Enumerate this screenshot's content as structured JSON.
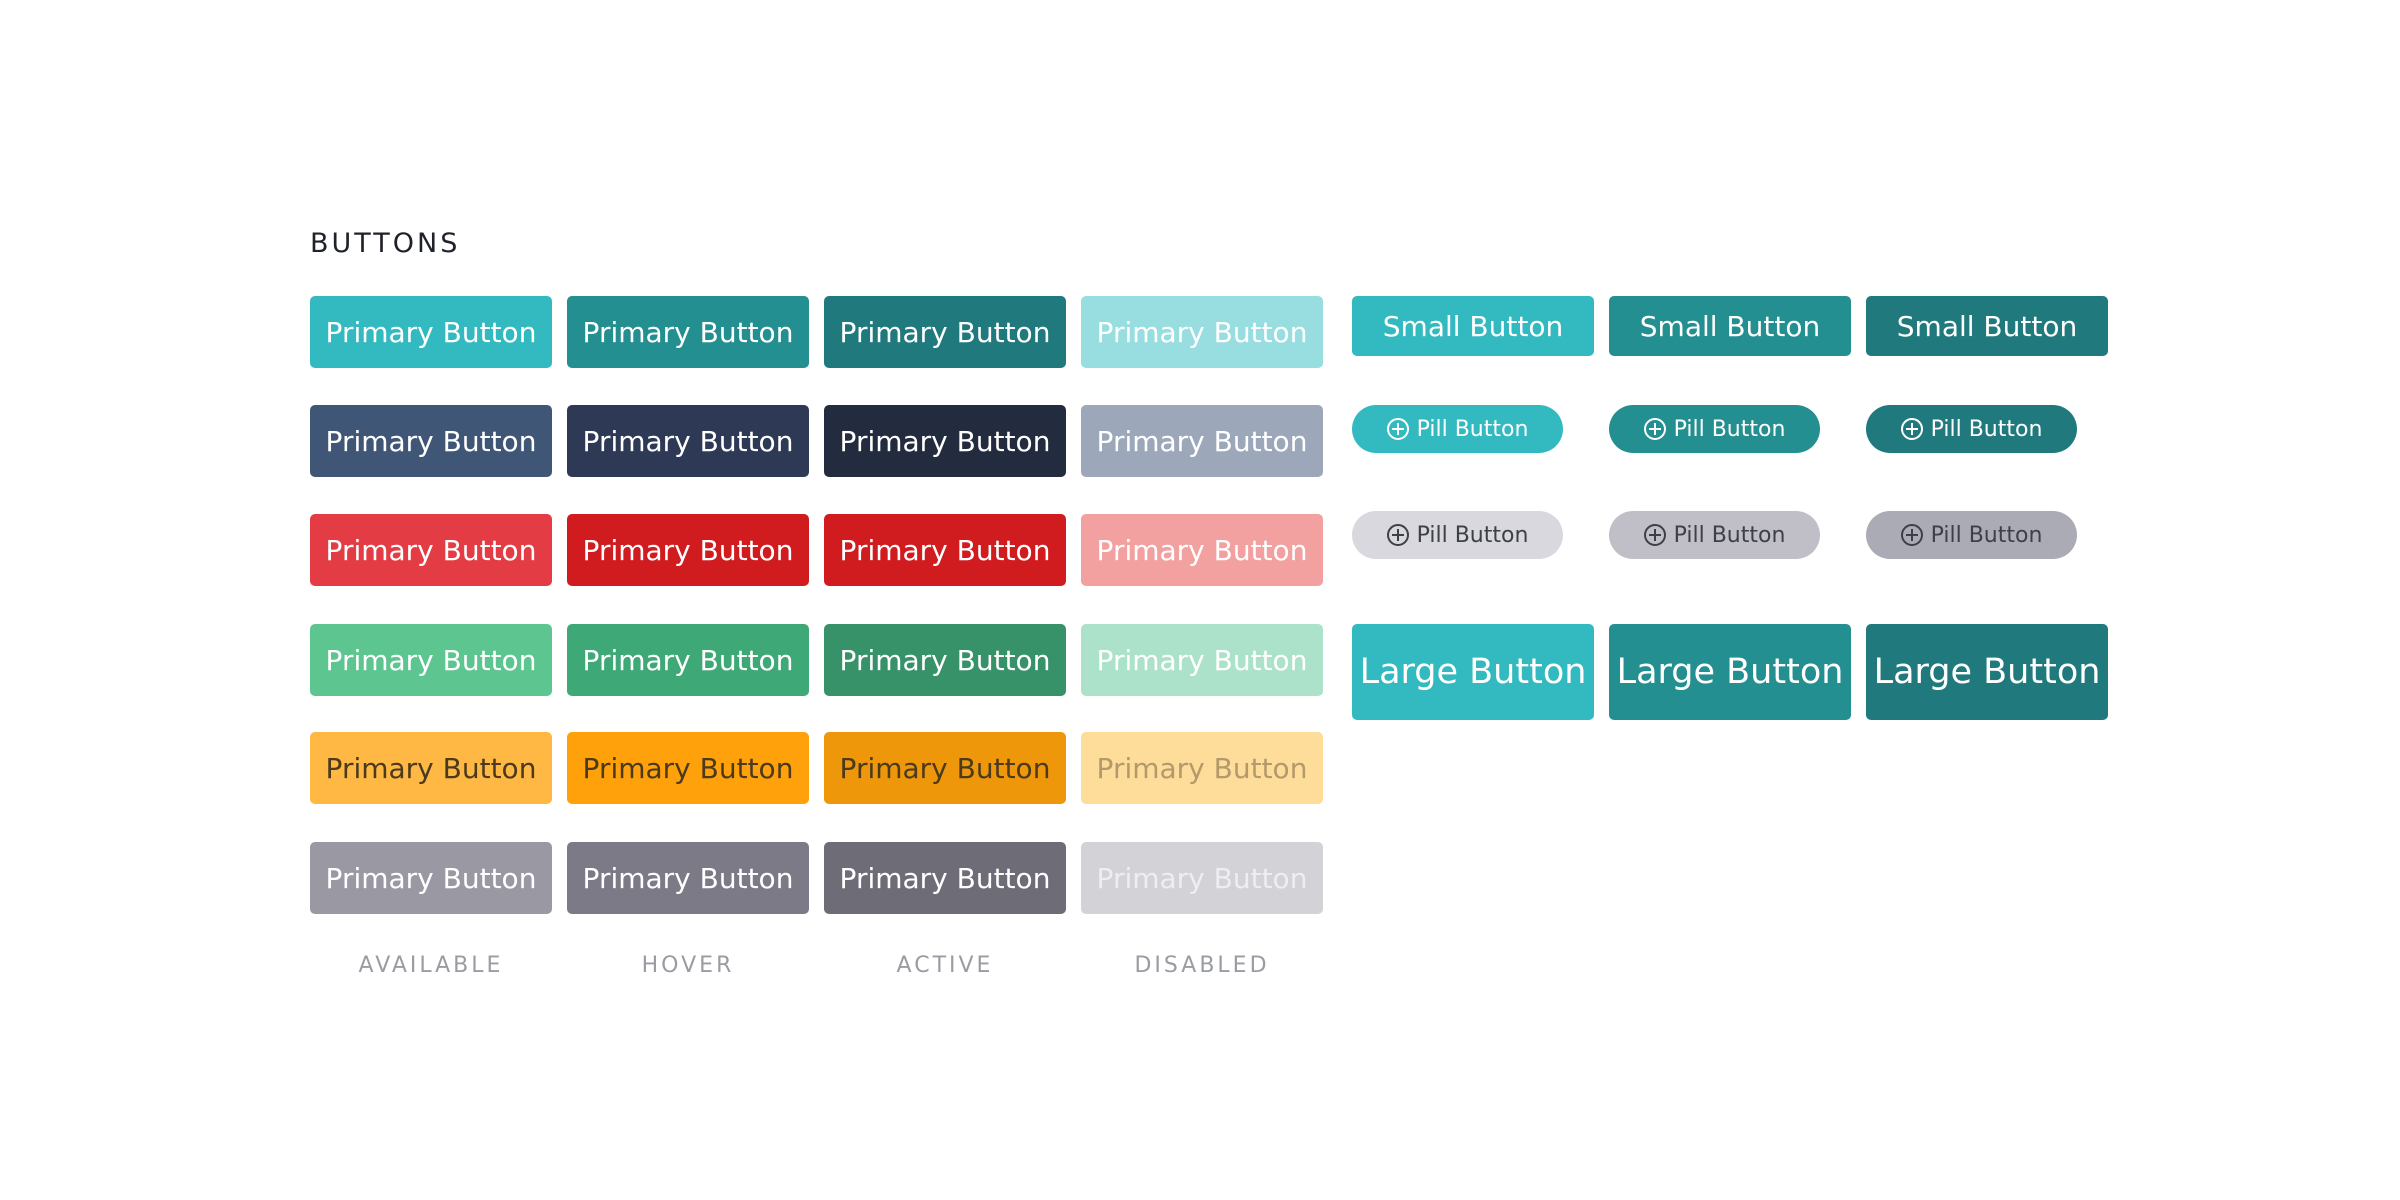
{
  "title": "BUTTONS",
  "primary_grid": {
    "label": "Primary Button",
    "rows": [
      {
        "name": "teal",
        "states": [
          {
            "bg": "#33b9c0",
            "fg": "#ffffff"
          },
          {
            "bg": "#238f90",
            "fg": "#ffffff"
          },
          {
            "bg": "#207a7d",
            "fg": "#ffffff"
          },
          {
            "bg": "#98dee0",
            "fg": "#ffffff"
          }
        ]
      },
      {
        "name": "navy",
        "states": [
          {
            "bg": "#3f5677",
            "fg": "#ffffff"
          },
          {
            "bg": "#2e3a55",
            "fg": "#ffffff"
          },
          {
            "bg": "#232c3f",
            "fg": "#ffffff"
          },
          {
            "bg": "#9ca8ba",
            "fg": "#ffffff"
          }
        ]
      },
      {
        "name": "red",
        "states": [
          {
            "bg": "#e43c44",
            "fg": "#ffffff"
          },
          {
            "bg": "#d01b1f",
            "fg": "#ffffff"
          },
          {
            "bg": "#d01b1f",
            "fg": "#ffffff"
          },
          {
            "bg": "#f2a0a0",
            "fg": "#ffffff"
          }
        ]
      },
      {
        "name": "green",
        "states": [
          {
            "bg": "#5dc590",
            "fg": "#ffffff"
          },
          {
            "bg": "#3fa877",
            "fg": "#ffffff"
          },
          {
            "bg": "#37926a",
            "fg": "#ffffff"
          },
          {
            "bg": "#ade2ca",
            "fg": "#ffffff"
          }
        ]
      },
      {
        "name": "yellow",
        "states": [
          {
            "bg": "#feb843",
            "fg": "#4b3a1c"
          },
          {
            "bg": "#fea10a",
            "fg": "#4b3a1c"
          },
          {
            "bg": "#ee970a",
            "fg": "#4b3a1c"
          },
          {
            "bg": "#fedc9a",
            "fg": "#b39a6a"
          }
        ]
      },
      {
        "name": "gray",
        "states": [
          {
            "bg": "#9a99a3",
            "fg": "#ffffff"
          },
          {
            "bg": "#7b7a86",
            "fg": "#ffffff"
          },
          {
            "bg": "#6e6d77",
            "fg": "#ffffff"
          },
          {
            "bg": "#d2d2d7",
            "fg": "#eeeef1"
          }
        ]
      }
    ]
  },
  "state_labels": [
    "AVAILABLE",
    "HOVER",
    "ACTIVE",
    "DISABLED"
  ],
  "small_buttons": {
    "label": "Small Button",
    "items": [
      {
        "bg": "#33b9c0",
        "fg": "#ffffff"
      },
      {
        "bg": "#238f90",
        "fg": "#ffffff"
      },
      {
        "bg": "#207a7d",
        "fg": "#ffffff"
      }
    ]
  },
  "pill_buttons": {
    "label": "Pill Button",
    "icon": "plus-circle-icon",
    "rows": [
      [
        {
          "bg": "#33b9c0",
          "fg": "#ffffff"
        },
        {
          "bg": "#238f90",
          "fg": "#ffffff"
        },
        {
          "bg": "#207a7d",
          "fg": "#ffffff"
        }
      ],
      [
        {
          "bg": "#d8d8de",
          "fg": "#3d4046"
        },
        {
          "bg": "#c0bfc8",
          "fg": "#3d4046"
        },
        {
          "bg": "#ababb5",
          "fg": "#3d4046"
        }
      ]
    ]
  },
  "large_buttons": {
    "label": "Large Button",
    "items": [
      {
        "bg": "#33b9c0",
        "fg": "#ffffff"
      },
      {
        "bg": "#238f90",
        "fg": "#ffffff"
      },
      {
        "bg": "#207a7d",
        "fg": "#ffffff"
      }
    ]
  }
}
